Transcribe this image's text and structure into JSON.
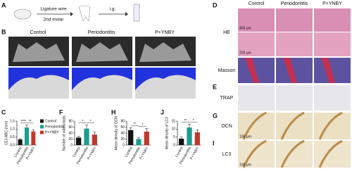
{
  "panel_labels": [
    "A",
    "B",
    "C",
    "D",
    "E",
    "F",
    "G",
    "H",
    "I",
    "J"
  ],
  "schematic": {
    "step1": "Ligature wire",
    "step2": "2nd molar",
    "step3": "i.g."
  },
  "microct": {
    "columns": [
      "Control",
      "Periodontitis",
      "P+YNBY"
    ]
  },
  "histology": {
    "columns": [
      "Control",
      "Periodontitis",
      "P+YNBY"
    ],
    "rows": [
      "HE",
      "Masson",
      "TRAP",
      "OCN",
      "LC3"
    ],
    "scale_bars": [
      "400 μm",
      "200 μm",
      "100 μm"
    ]
  },
  "chart_data": [
    {
      "type": "bar",
      "ylabel": "CEJ-ABC (mm)",
      "categories": [
        "Control",
        "Periodontitis",
        "P+YNBY"
      ],
      "values": [
        0.35,
        1.1,
        0.85
      ],
      "errors": [
        0.05,
        0.15,
        0.1
      ],
      "colors": [
        "#111111",
        "#1a9e8f",
        "#c0392b"
      ],
      "ylim": [
        0,
        1.5
      ],
      "yticks": [
        {
          "value": 0,
          "label": "0.0"
        },
        {
          "value": 0.5,
          "label": "0.5"
        },
        {
          "value": 1,
          "label": "1.0"
        },
        {
          "value": 1.5,
          "label": "1.5"
        }
      ],
      "annotations": [
        "****",
        "**"
      ],
      "legend": true
    },
    {
      "type": "bar",
      "ylabel": "Number of osteoclasts",
      "categories": [
        "Control",
        "Periodontitis",
        "P+YNBY"
      ],
      "values": [
        25,
        55,
        35
      ],
      "errors": [
        4,
        12,
        8
      ],
      "colors": [
        "#111111",
        "#1a9e8f",
        "#c0392b"
      ],
      "ylim": [
        0,
        80
      ],
      "yticks": [
        0,
        20,
        40,
        60,
        80
      ],
      "annotations": [
        "*",
        "*"
      ],
      "legend": false
    },
    {
      "type": "bar",
      "ylabel": "Mean density of OCN",
      "categories": [
        "Control",
        "Periodontitis",
        "P+YNBY"
      ],
      "values": [
        50,
        20,
        45
      ],
      "errors": [
        8,
        4,
        10
      ],
      "colors": [
        "#111111",
        "#1a9e8f",
        "#c0392b"
      ],
      "ylim": [
        0,
        80
      ],
      "yticks": [
        0,
        20,
        40,
        60,
        80
      ],
      "annotations": [
        "**",
        "*"
      ],
      "legend": false
    },
    {
      "type": "bar",
      "ylabel": "Mean density of LC3",
      "categories": [
        "Control",
        "Periodontitis",
        "P+YNBY"
      ],
      "values": [
        4,
        11,
        8
      ],
      "errors": [
        1,
        2,
        1.5
      ],
      "colors": [
        "#111111",
        "#1a9e8f",
        "#c0392b"
      ],
      "ylim": [
        0,
        15
      ],
      "yticks": [
        0,
        5,
        10,
        15
      ],
      "annotations": [
        "**",
        "*"
      ],
      "legend": false
    }
  ]
}
